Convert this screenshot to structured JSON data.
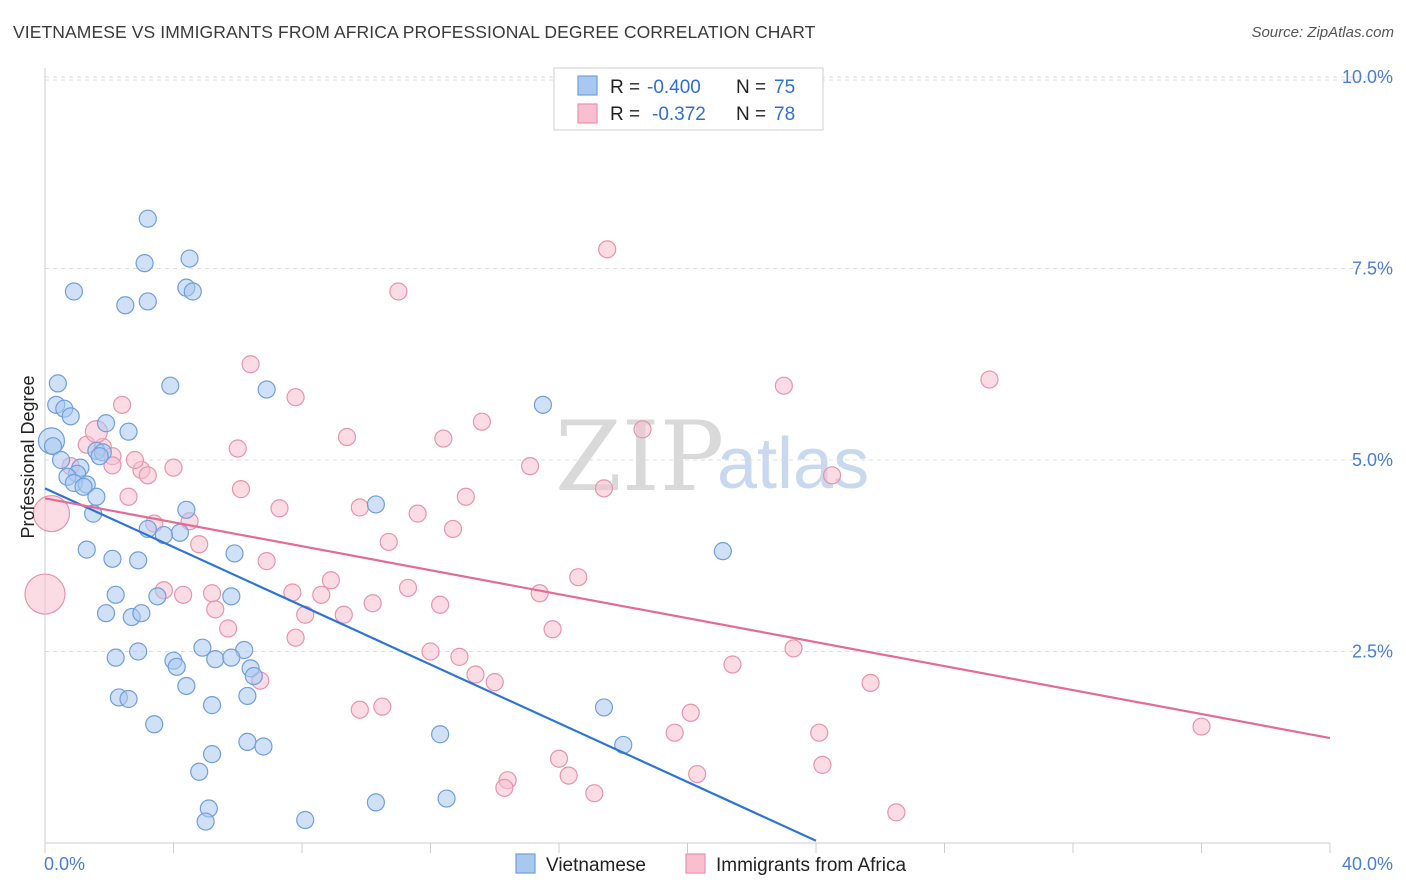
{
  "header": {
    "title": "VIETNAMESE VS IMMIGRANTS FROM AFRICA PROFESSIONAL DEGREE CORRELATION CHART",
    "source": "Source: ZipAtlas.com"
  },
  "watermark": {
    "zip": "ZIP",
    "atlas": "atlas"
  },
  "stats": {
    "blue": {
      "r_label": "R =",
      "r_value": "-0.400",
      "n_label": "N =",
      "n_value": "75"
    },
    "pink": {
      "r_label": "R =",
      "r_value": "-0.372",
      "n_label": "N =",
      "n_value": "78"
    }
  },
  "colors": {
    "blue_fill": "#a9c8f0",
    "blue_stroke": "#6f9fdc",
    "blue_line": "#2e74d6",
    "pink_fill": "#f7bfd0",
    "pink_stroke": "#e993ae",
    "pink_line": "#e46b95",
    "grid": "#dddddd",
    "tick_text": "#4a7fd0"
  },
  "chart_data": {
    "type": "scatter",
    "title": "VIETNAMESE VS IMMIGRANTS FROM AFRICA PROFESSIONAL DEGREE CORRELATION CHART",
    "xlabel": "",
    "ylabel": "Professional Degree",
    "xlim": [
      0,
      40
    ],
    "ylim": [
      0,
      10.5
    ],
    "x_tick_labels": [
      "0.0%",
      "40.0%"
    ],
    "y_ticks": [
      2.5,
      5.0,
      7.5,
      10.0
    ],
    "y_tick_labels": [
      "2.5%",
      "5.0%",
      "7.5%",
      "10.0%"
    ],
    "grid": "horizontal dashed",
    "legend_position": "bottom-center",
    "series": [
      {
        "name": "Vietnamese",
        "color": "#a9c8f0",
        "trend": {
          "x": [
            0,
            24
          ],
          "y": [
            4.63,
            0.03
          ]
        },
        "points": [
          [
            3.2,
            8.15
          ],
          [
            3.1,
            7.57
          ],
          [
            4.5,
            7.63
          ],
          [
            0.9,
            7.2
          ],
          [
            4.4,
            7.25
          ],
          [
            4.6,
            7.2
          ],
          [
            3.2,
            7.07
          ],
          [
            2.5,
            7.02
          ],
          [
            0.4,
            6.0
          ],
          [
            3.9,
            5.97
          ],
          [
            6.9,
            5.92
          ],
          [
            0.35,
            5.72
          ],
          [
            15.5,
            5.72
          ],
          [
            0.6,
            5.67
          ],
          [
            0.8,
            5.57
          ],
          [
            1.9,
            5.48
          ],
          [
            2.6,
            5.37
          ],
          [
            0.2,
            5.25
          ],
          [
            0.25,
            5.18
          ],
          [
            1.6,
            5.12
          ],
          [
            1.8,
            5.1
          ],
          [
            1.7,
            5.05
          ],
          [
            0.5,
            5.0
          ],
          [
            1.1,
            4.9
          ],
          [
            1.0,
            4.82
          ],
          [
            0.7,
            4.78
          ],
          [
            0.9,
            4.7
          ],
          [
            1.3,
            4.68
          ],
          [
            1.2,
            4.65
          ],
          [
            1.6,
            4.52
          ],
          [
            4.4,
            4.35
          ],
          [
            10.3,
            4.42
          ],
          [
            1.5,
            4.3
          ],
          [
            4.2,
            4.05
          ],
          [
            3.2,
            4.1
          ],
          [
            3.7,
            4.02
          ],
          [
            5.9,
            3.78
          ],
          [
            1.3,
            3.83
          ],
          [
            2.1,
            3.71
          ],
          [
            2.9,
            3.69
          ],
          [
            21.1,
            3.81
          ],
          [
            2.2,
            3.24
          ],
          [
            3.5,
            3.22
          ],
          [
            5.8,
            3.22
          ],
          [
            1.9,
            3.0
          ],
          [
            2.7,
            2.95
          ],
          [
            4.9,
            2.55
          ],
          [
            6.2,
            2.52
          ],
          [
            2.9,
            2.5
          ],
          [
            2.2,
            2.42
          ],
          [
            4.0,
            2.38
          ],
          [
            5.3,
            2.4
          ],
          [
            5.8,
            2.42
          ],
          [
            4.1,
            2.3
          ],
          [
            6.4,
            2.28
          ],
          [
            6.5,
            2.18
          ],
          [
            4.4,
            2.05
          ],
          [
            6.3,
            1.92
          ],
          [
            2.3,
            1.9
          ],
          [
            2.6,
            1.88
          ],
          [
            5.2,
            1.8
          ],
          [
            17.4,
            1.77
          ],
          [
            3.4,
            1.55
          ],
          [
            12.3,
            1.42
          ],
          [
            6.3,
            1.32
          ],
          [
            6.8,
            1.26
          ],
          [
            18.0,
            1.28
          ],
          [
            5.2,
            1.16
          ],
          [
            4.8,
            0.93
          ],
          [
            12.5,
            0.58
          ],
          [
            10.3,
            0.53
          ],
          [
            5.1,
            0.45
          ],
          [
            8.1,
            0.3
          ],
          [
            5.0,
            0.28
          ],
          [
            3.0,
            3.0
          ]
        ]
      },
      {
        "name": "Immigrants from Africa",
        "color": "#f7bfd0",
        "trend": {
          "x": [
            0,
            40
          ],
          "y": [
            4.5,
            1.37
          ]
        },
        "points": [
          [
            17.5,
            7.75
          ],
          [
            11.0,
            7.2
          ],
          [
            6.4,
            6.25
          ],
          [
            23.0,
            5.97
          ],
          [
            29.4,
            6.05
          ],
          [
            7.8,
            5.82
          ],
          [
            2.4,
            5.72
          ],
          [
            13.6,
            5.5
          ],
          [
            18.6,
            5.4
          ],
          [
            9.4,
            5.3
          ],
          [
            12.4,
            5.28
          ],
          [
            6.0,
            5.15
          ],
          [
            1.8,
            5.17
          ],
          [
            1.3,
            5.2
          ],
          [
            1.6,
            5.37
          ],
          [
            2.1,
            5.05
          ],
          [
            15.1,
            4.92
          ],
          [
            2.1,
            4.93
          ],
          [
            0.8,
            4.92
          ],
          [
            3.0,
            4.87
          ],
          [
            4.0,
            4.9
          ],
          [
            3.2,
            4.8
          ],
          [
            24.5,
            4.8
          ],
          [
            6.1,
            4.62
          ],
          [
            17.4,
            4.63
          ],
          [
            13.1,
            4.52
          ],
          [
            2.6,
            4.52
          ],
          [
            9.8,
            4.38
          ],
          [
            7.3,
            4.37
          ],
          [
            11.6,
            4.3
          ],
          [
            4.5,
            4.2
          ],
          [
            3.4,
            4.17
          ],
          [
            12.7,
            4.1
          ],
          [
            10.7,
            3.93
          ],
          [
            4.8,
            3.9
          ],
          [
            0.2,
            4.3
          ],
          [
            6.9,
            3.68
          ],
          [
            16.6,
            3.47
          ],
          [
            8.9,
            3.43
          ],
          [
            3.7,
            3.3
          ],
          [
            11.3,
            3.33
          ],
          [
            7.7,
            3.27
          ],
          [
            8.6,
            3.24
          ],
          [
            15.4,
            3.26
          ],
          [
            4.3,
            3.24
          ],
          [
            5.2,
            3.26
          ],
          [
            10.2,
            3.13
          ],
          [
            12.3,
            3.11
          ],
          [
            5.3,
            3.05
          ],
          [
            8.1,
            2.98
          ],
          [
            9.3,
            2.98
          ],
          [
            5.7,
            2.8
          ],
          [
            15.8,
            2.79
          ],
          [
            7.8,
            2.68
          ],
          [
            23.3,
            2.54
          ],
          [
            12.0,
            2.5
          ],
          [
            12.9,
            2.43
          ],
          [
            21.4,
            2.33
          ],
          [
            13.4,
            2.2
          ],
          [
            14.0,
            2.1
          ],
          [
            6.7,
            2.12
          ],
          [
            25.7,
            2.09
          ],
          [
            10.5,
            1.78
          ],
          [
            9.8,
            1.74
          ],
          [
            20.1,
            1.7
          ],
          [
            36.0,
            1.52
          ],
          [
            19.6,
            1.44
          ],
          [
            24.1,
            1.44
          ],
          [
            16.0,
            1.1
          ],
          [
            24.2,
            1.02
          ],
          [
            16.3,
            0.88
          ],
          [
            20.3,
            0.9
          ],
          [
            14.4,
            0.82
          ],
          [
            14.3,
            0.72
          ],
          [
            17.1,
            0.65
          ],
          [
            26.5,
            0.4
          ],
          [
            0.0,
            3.25
          ],
          [
            2.8,
            5.0
          ]
        ]
      }
    ]
  }
}
